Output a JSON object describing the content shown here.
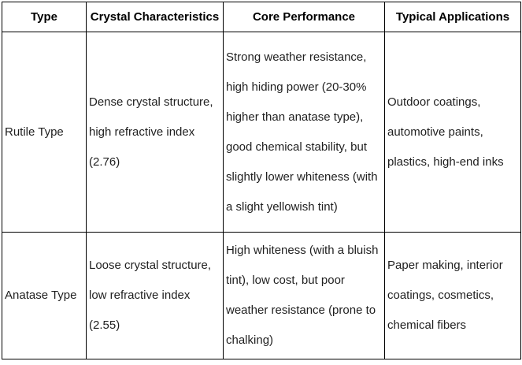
{
  "table": {
    "headers": {
      "type": "Type",
      "crystal": "Crystal Characteristics",
      "performance": "Core Performance",
      "applications": "Typical Applications"
    },
    "rows": [
      {
        "type": "Rutile Type",
        "crystal": "Dense crystal structure,\nhigh refractive index\n(2.76)",
        "performance": "Strong weather resistance,\nhigh hiding power (20-30%\nhigher than anatase type),\ngood chemical stability, but\nslightly lower whiteness (with\na slight yellowish tint)",
        "applications": "Outdoor coatings,\nautomotive paints,\nplastics, high-end inks"
      },
      {
        "type": "Anatase Type",
        "crystal": "Loose crystal structure,\nlow refractive index\n(2.55)",
        "performance": "High whiteness (with a bluish\ntint), low cost, but poor\nweather resistance (prone to\nchalking)",
        "applications": "Paper making, interior\ncoatings, cosmetics,\nchemical fibers"
      }
    ],
    "colors": {
      "border": "#000000",
      "text": "#1f1f1f",
      "background": "#ffffff"
    }
  }
}
